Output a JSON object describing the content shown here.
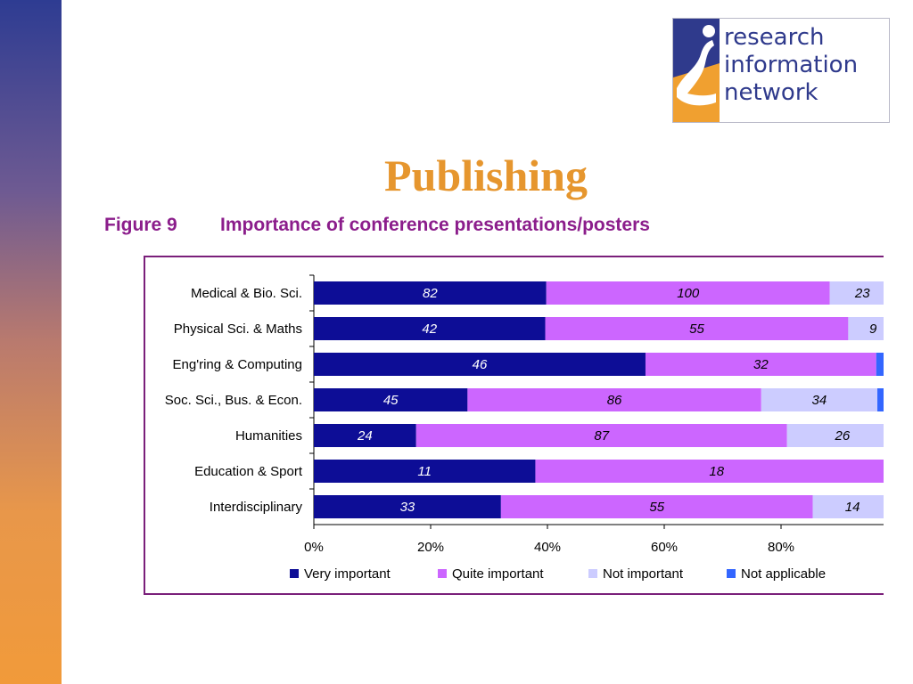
{
  "slide": {
    "title": "Publishing",
    "figure_number": "Figure 9",
    "figure_title": "Importance of conference presentations/posters"
  },
  "logo": {
    "lines": [
      "research",
      "information",
      "network"
    ],
    "colors": {
      "blue": "#2f3a8c",
      "orange": "#f0a030"
    }
  },
  "chart_data": {
    "type": "bar",
    "orientation": "horizontal",
    "stacked": "percent",
    "categories": [
      "Medical & Bio. Sci.",
      "Physical Sci. & Maths",
      "Eng'ring & Computing",
      "Soc. Sci., Bus. & Econ.",
      "Humanities",
      "Education & Sport",
      "Interdisciplinary"
    ],
    "series": [
      {
        "name": "Very important",
        "color": "#0d0d96",
        "label_color": "#ffffff",
        "values": [
          82,
          42,
          46,
          45,
          24,
          11,
          33
        ]
      },
      {
        "name": "Quite important",
        "color": "#cc66ff",
        "label_color": "#000000",
        "values": [
          100,
          55,
          32,
          86,
          87,
          18,
          55
        ]
      },
      {
        "name": "Not important",
        "color": "#ccccff",
        "label_color": "#000000",
        "values": [
          23,
          9,
          0,
          34,
          26,
          0,
          14
        ]
      },
      {
        "name": "Not applicable",
        "color": "#3366ff",
        "label_color": "#000000",
        "values": [
          1,
          0,
          3,
          6,
          0,
          0,
          1
        ]
      }
    ],
    "visible_value_labels": [
      [
        "82",
        "100",
        "23"
      ],
      [
        "42",
        "55",
        "9"
      ],
      [
        "46",
        "32"
      ],
      [
        "45",
        "86",
        "34"
      ],
      [
        "24",
        "87",
        "26"
      ],
      [
        "11",
        "18"
      ],
      [
        "33",
        "55",
        "14"
      ]
    ],
    "xaxis": {
      "ticks": [
        "0%",
        "20%",
        "40%",
        "60%",
        "80%"
      ],
      "range": [
        0,
        100
      ]
    },
    "legend_position": "bottom",
    "grid": false
  }
}
